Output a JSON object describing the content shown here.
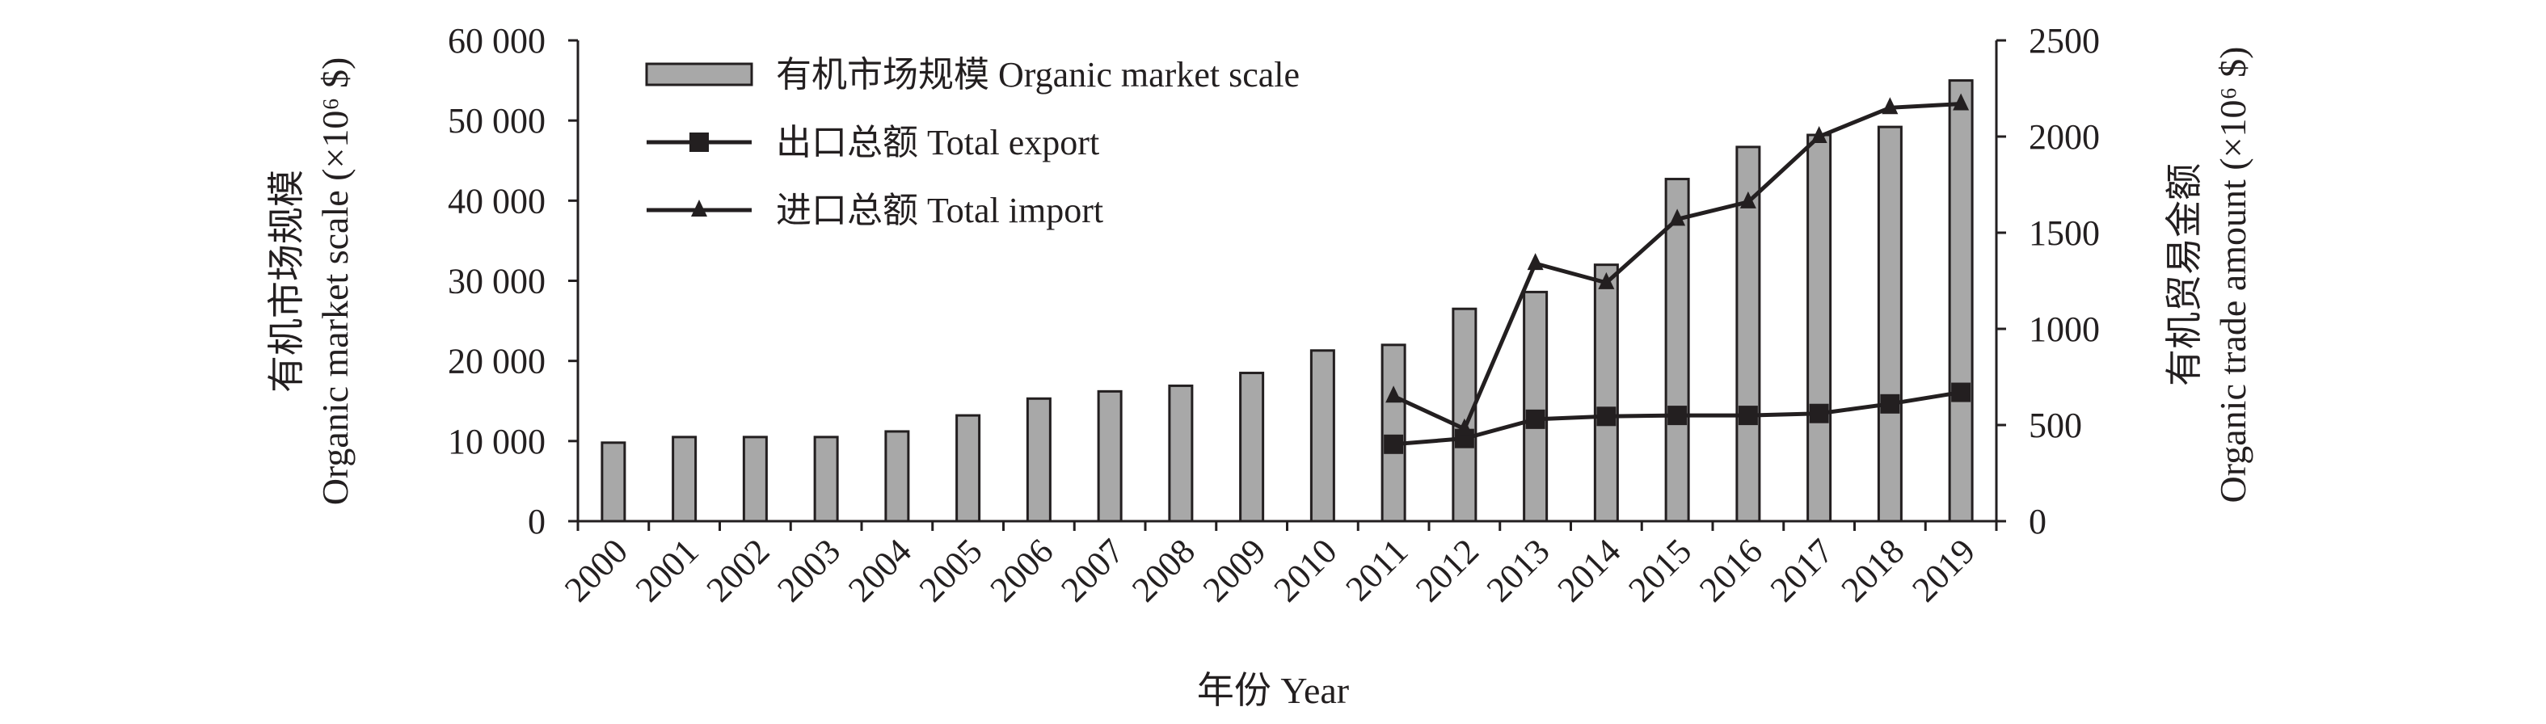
{
  "chart_data": {
    "type": "bar",
    "title": "",
    "categories": [
      "2000",
      "2001",
      "2002",
      "2003",
      "2004",
      "2005",
      "2006",
      "2007",
      "2008",
      "2009",
      "2010",
      "2011",
      "2012",
      "2013",
      "2014",
      "2015",
      "2016",
      "2017",
      "2018",
      "2019"
    ],
    "series": [
      {
        "name": "有机市场规模 Organic market scale",
        "type": "bar",
        "axis": "left",
        "values": [
          9800,
          10500,
          10500,
          10500,
          11200,
          13200,
          15300,
          16200,
          16900,
          18500,
          21300,
          22000,
          26500,
          28600,
          32000,
          42700,
          46700,
          48200,
          49200,
          55000
        ]
      },
      {
        "name": "出口总额 Total export",
        "type": "line",
        "marker": "square",
        "axis": "right",
        "values": [
          null,
          null,
          null,
          null,
          null,
          null,
          null,
          null,
          null,
          null,
          null,
          400,
          430,
          530,
          545,
          550,
          550,
          560,
          610,
          670
        ]
      },
      {
        "name": "进口总额 Total import",
        "type": "line",
        "marker": "triangle",
        "axis": "right",
        "values": [
          null,
          null,
          null,
          null,
          null,
          null,
          null,
          null,
          null,
          null,
          null,
          650,
          480,
          1340,
          1240,
          1570,
          1660,
          2000,
          2150,
          2170
        ]
      }
    ],
    "xlabel": "年份 Year",
    "ylabel_left": [
      "有机市场规模",
      "Organic market scale (×10⁶ $)"
    ],
    "ylabel_right": [
      "有机贸易金额",
      "Organic trade amount (×10⁶ $)"
    ],
    "ylim_left": [
      0,
      60000
    ],
    "ylim_right": [
      0,
      2500
    ],
    "yticks_left": [
      "0",
      "10 000",
      "20 000",
      "30 000",
      "40 000",
      "50 000",
      "60 000"
    ],
    "yticks_right": [
      "0",
      "500",
      "1000",
      "1500",
      "2000",
      "2500"
    ],
    "grid": false,
    "legend": "top-left",
    "colors": {
      "bar_fill": "#a8a8a8",
      "line": "#231f20",
      "axis": "#231f20"
    }
  }
}
